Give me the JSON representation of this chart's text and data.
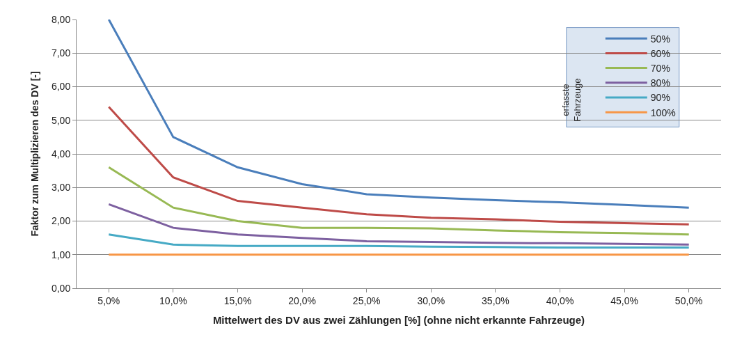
{
  "chart_data": {
    "type": "line",
    "xlabel": "Mittelwert des DV aus zwei Zählungen [%] (ohne nicht erkannte Fahrzeuge)",
    "ylabel": "Faktor zum Multiplizieren des DV [-]",
    "legend_title": "erfasste Fahrzeuge",
    "categories": [
      "5,0%",
      "10,0%",
      "15,0%",
      "20,0%",
      "25,0%",
      "30,0%",
      "35,0%",
      "40,0%",
      "45,0%",
      "50,0%"
    ],
    "series": [
      {
        "name": "50%",
        "color": "#4a7ebb",
        "values": [
          8.0,
          4.5,
          3.6,
          3.1,
          2.8,
          2.7,
          2.62,
          2.56,
          2.48,
          2.4
        ]
      },
      {
        "name": "60%",
        "color": "#be4b48",
        "values": [
          5.4,
          3.3,
          2.6,
          2.4,
          2.2,
          2.1,
          2.05,
          1.98,
          1.94,
          1.9
        ]
      },
      {
        "name": "70%",
        "color": "#98b954",
        "values": [
          3.6,
          2.4,
          2.0,
          1.8,
          1.8,
          1.78,
          1.72,
          1.67,
          1.64,
          1.6
        ]
      },
      {
        "name": "80%",
        "color": "#7d60a0",
        "values": [
          2.5,
          1.8,
          1.6,
          1.5,
          1.4,
          1.38,
          1.35,
          1.34,
          1.32,
          1.3
        ]
      },
      {
        "name": "90%",
        "color": "#46aac5",
        "values": [
          1.6,
          1.3,
          1.26,
          1.26,
          1.26,
          1.24,
          1.23,
          1.21,
          1.21,
          1.21
        ]
      },
      {
        "name": "100%",
        "color": "#f79646",
        "values": [
          1.0,
          1.0,
          1.0,
          1.0,
          1.0,
          1.0,
          1.0,
          1.0,
          1.0,
          1.0
        ]
      }
    ],
    "ylim": [
      0,
      8
    ],
    "yticks": [
      {
        "value": 0,
        "label": "0,00"
      },
      {
        "value": 1,
        "label": "1,00"
      },
      {
        "value": 2,
        "label": "2,00"
      },
      {
        "value": 3,
        "label": "3,00"
      },
      {
        "value": 4,
        "label": "4,00"
      },
      {
        "value": 5,
        "label": "5,00"
      },
      {
        "value": 6,
        "label": "6,00"
      },
      {
        "value": 7,
        "label": "7,00"
      },
      {
        "value": 8,
        "label": "8,00"
      }
    ],
    "grid": "y",
    "legend": "top right",
    "marker": "none",
    "line_style": "solid"
  }
}
